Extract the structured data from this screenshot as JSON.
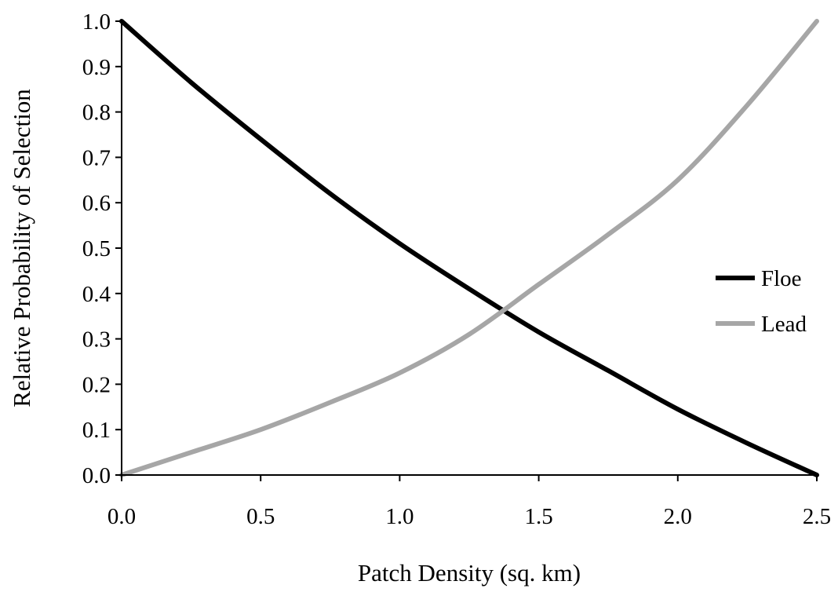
{
  "chart_data": {
    "type": "line",
    "title": "",
    "xlabel": "Patch Density (sq. km)",
    "ylabel": "Relative Probability of Selection",
    "xlim": [
      0.0,
      2.5
    ],
    "ylim": [
      0.0,
      1.0
    ],
    "xticks": [
      "0.0",
      "0.5",
      "1.0",
      "1.5",
      "2.0",
      "2.5"
    ],
    "yticks": [
      "0.0",
      "0.1",
      "0.2",
      "0.3",
      "0.4",
      "0.5",
      "0.6",
      "0.7",
      "0.8",
      "0.9",
      "1.0"
    ],
    "grid": false,
    "legend_position": "right",
    "series": [
      {
        "name": "Floe",
        "color": "#000000",
        "x": [
          0.0,
          0.25,
          0.5,
          0.75,
          1.0,
          1.25,
          1.5,
          1.75,
          2.0,
          2.25,
          2.5
        ],
        "y": [
          1.0,
          0.865,
          0.74,
          0.62,
          0.51,
          0.41,
          0.315,
          0.23,
          0.145,
          0.07,
          0.0
        ]
      },
      {
        "name": "Lead",
        "color": "#a6a6a6",
        "x": [
          0.0,
          0.25,
          0.5,
          0.75,
          1.0,
          1.25,
          1.5,
          1.75,
          2.0,
          2.25,
          2.5
        ],
        "y": [
          0.0,
          0.05,
          0.1,
          0.16,
          0.225,
          0.31,
          0.42,
          0.53,
          0.65,
          0.815,
          1.0
        ]
      }
    ]
  }
}
